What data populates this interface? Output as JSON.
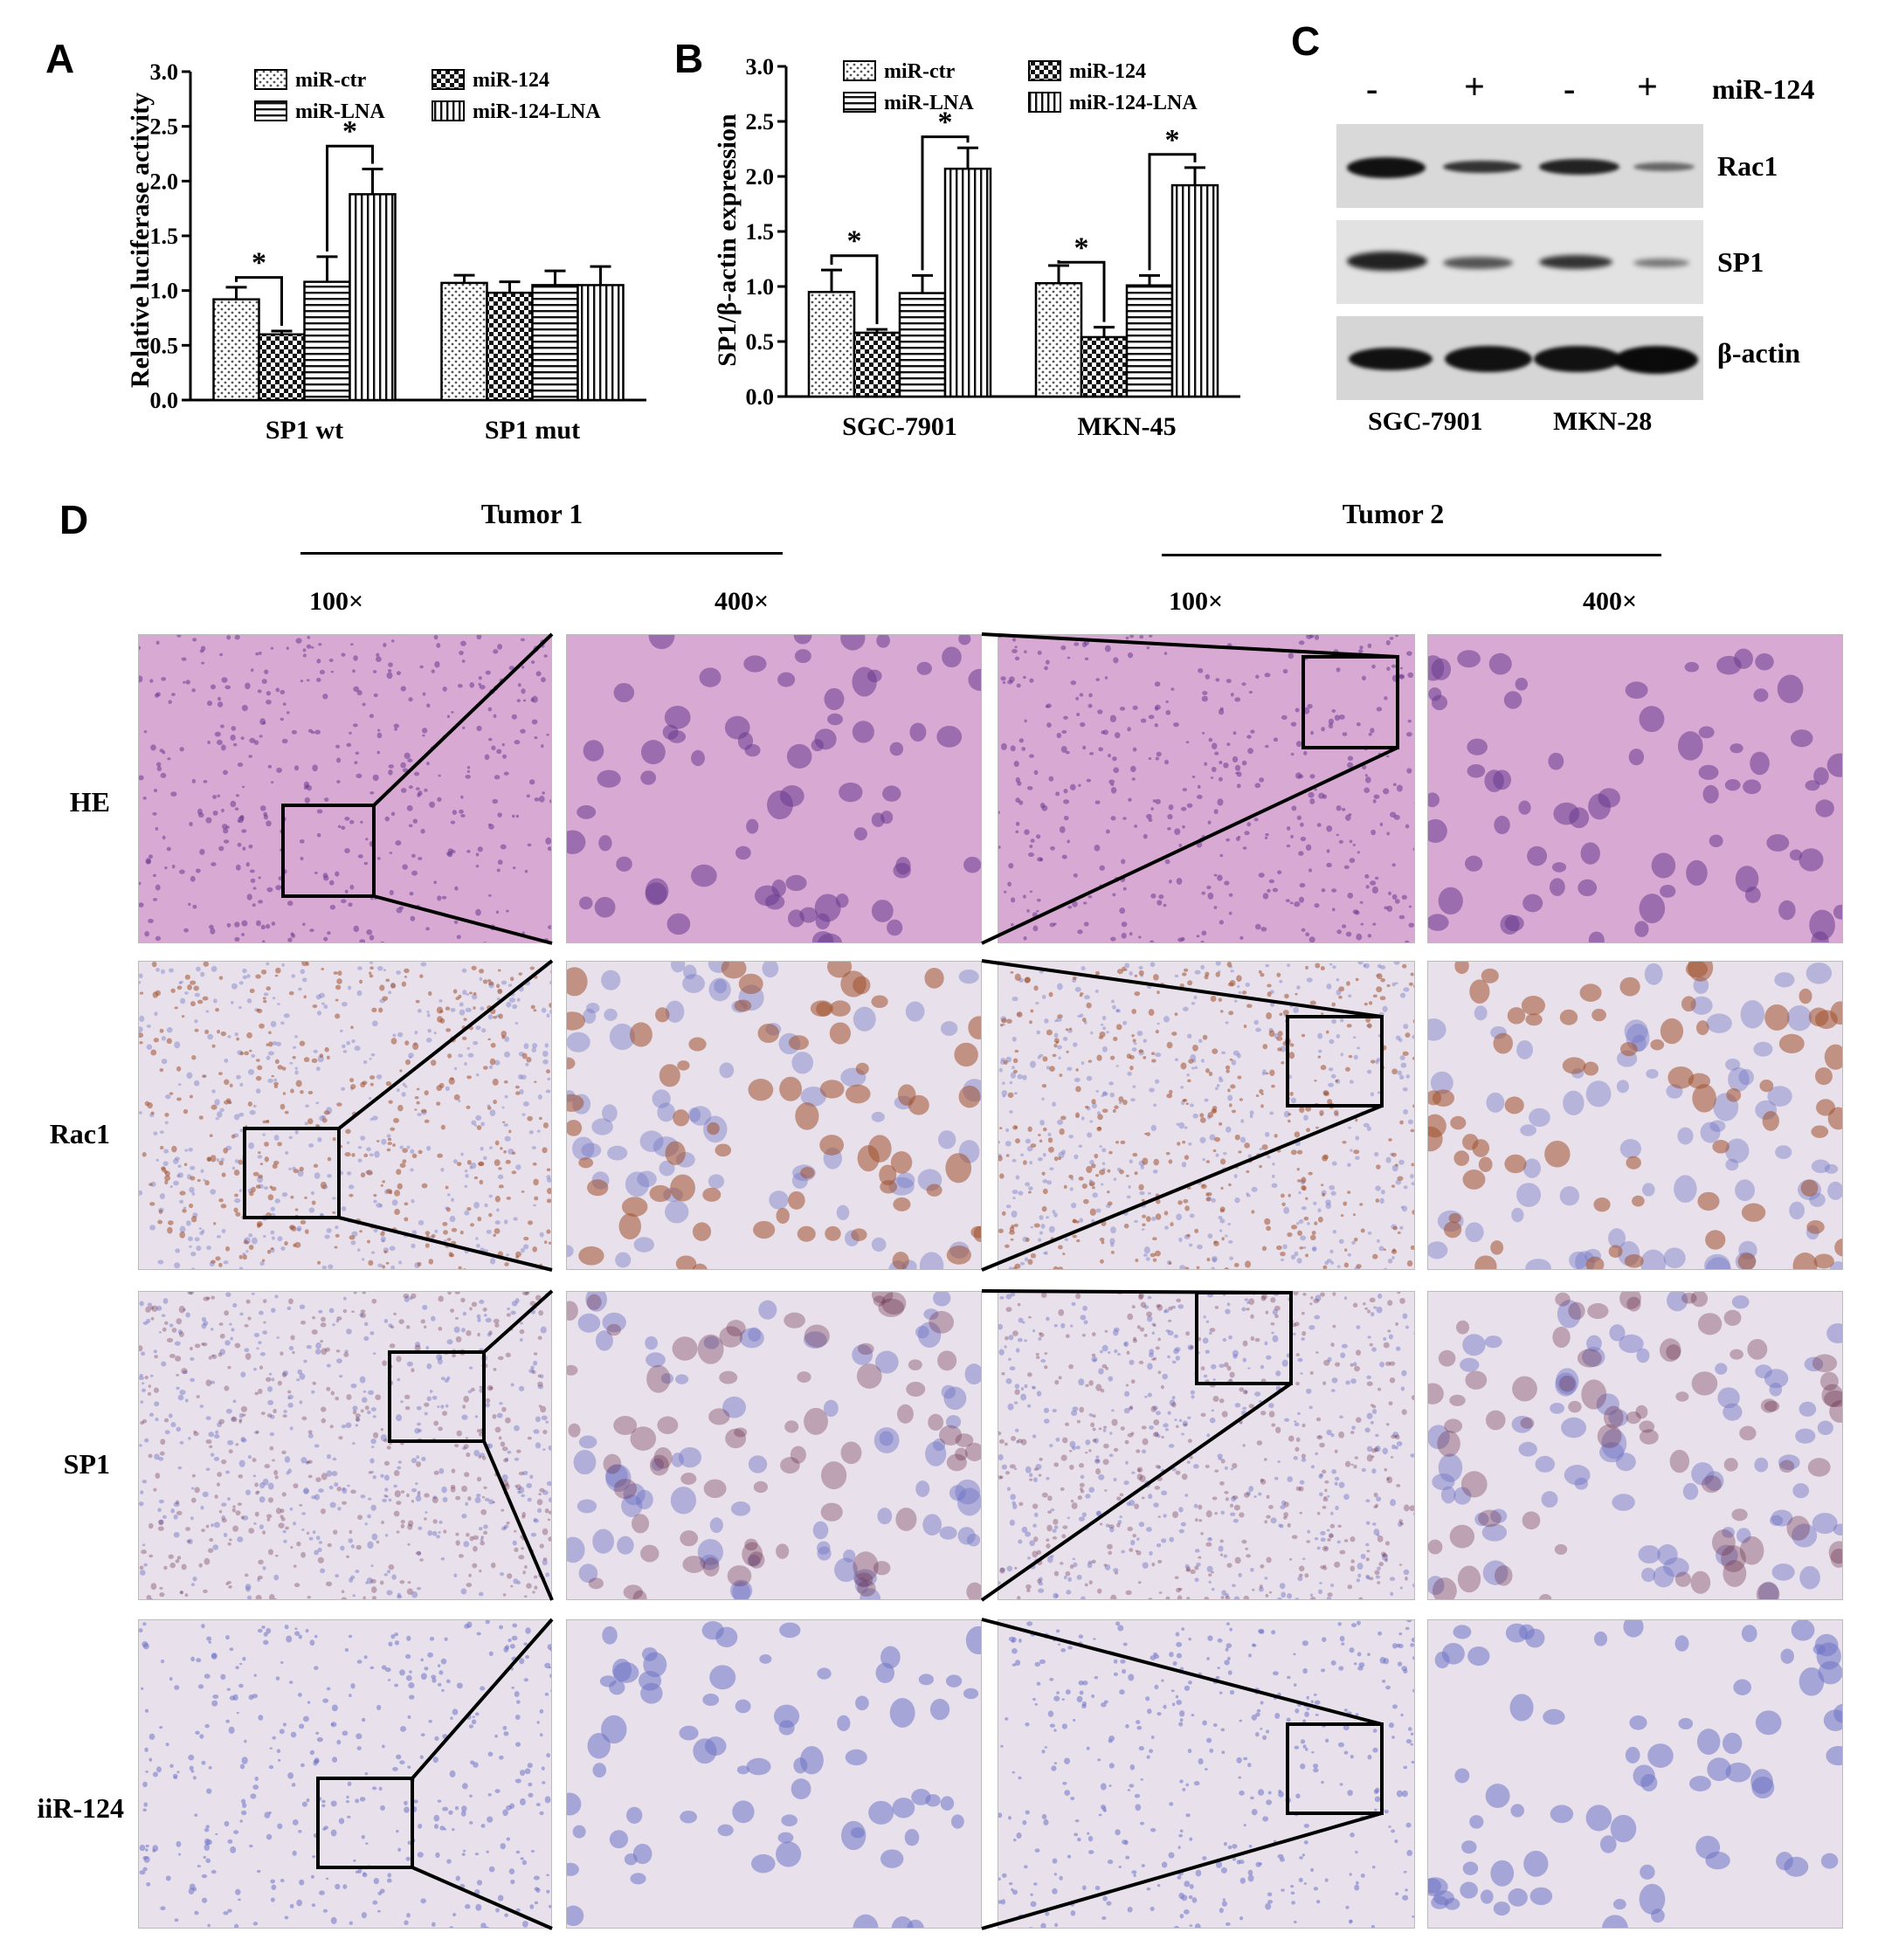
{
  "panel_letters": {
    "a": "A",
    "b": "B",
    "c": "C",
    "d": "D"
  },
  "significance_marker": "*",
  "chart_data": [
    {
      "panel": "A",
      "type": "bar",
      "categories": [
        "SP1 wt",
        "SP1 mut"
      ],
      "ylabel": "Relative luciferase activity",
      "ylim": [
        0,
        3.0
      ],
      "yticks": [
        "0.0",
        "0.5",
        "1.0",
        "1.5",
        "2.0",
        "2.5",
        "3.0"
      ],
      "legend_position": "top",
      "series": [
        {
          "name": "miR-ctr",
          "values": [
            0.92,
            1.07
          ],
          "errors": [
            0.11,
            0.07
          ]
        },
        {
          "name": "miR-124",
          "values": [
            0.6,
            0.98
          ],
          "errors": [
            0.03,
            0.1
          ]
        },
        {
          "name": "miR-LNA",
          "values": [
            1.08,
            1.05
          ],
          "errors": [
            0.23,
            0.13
          ]
        },
        {
          "name": "miR-124-LNA",
          "values": [
            1.88,
            1.05
          ],
          "errors": [
            0.23,
            0.17
          ]
        }
      ],
      "annotations": [
        {
          "text": "*",
          "between": [
            "miR-ctr",
            "miR-124"
          ],
          "category": "SP1 wt"
        },
        {
          "text": "*",
          "between": [
            "miR-LNA",
            "miR-124-LNA"
          ],
          "category": "SP1 wt"
        }
      ]
    },
    {
      "panel": "B",
      "type": "bar",
      "categories": [
        "SGC-7901",
        "MKN-45"
      ],
      "ylabel": "SP1/β-actin expression",
      "ylim": [
        0,
        3.0
      ],
      "yticks": [
        "0.0",
        "0.5",
        "1.0",
        "1.5",
        "2.0",
        "2.5",
        "3.0"
      ],
      "legend_position": "top",
      "series": [
        {
          "name": "miR-ctr",
          "values": [
            0.95,
            1.03
          ],
          "errors": [
            0.2,
            0.16
          ]
        },
        {
          "name": "miR-124",
          "values": [
            0.58,
            0.54
          ],
          "errors": [
            0.03,
            0.09
          ]
        },
        {
          "name": "miR-LNA",
          "values": [
            0.94,
            1.01
          ],
          "errors": [
            0.16,
            0.09
          ]
        },
        {
          "name": "miR-124-LNA",
          "values": [
            2.07,
            1.92
          ],
          "errors": [
            0.19,
            0.16
          ]
        }
      ],
      "annotations": [
        {
          "text": "*",
          "between": [
            "miR-ctr",
            "miR-124"
          ],
          "category": "SGC-7901"
        },
        {
          "text": "*",
          "between": [
            "miR-LNA",
            "miR-124-LNA"
          ],
          "category": "SGC-7901"
        },
        {
          "text": "*",
          "between": [
            "miR-ctr",
            "miR-124"
          ],
          "category": "MKN-45"
        },
        {
          "text": "*",
          "between": [
            "miR-LNA",
            "miR-124-LNA"
          ],
          "category": "MKN-45"
        }
      ]
    }
  ],
  "western_blot": {
    "treatment_label": "miR-124",
    "lane_signs": [
      "-",
      "+",
      "-",
      "+"
    ],
    "bands": [
      "Rac1",
      "SP1",
      "β-actin"
    ],
    "cell_lines": [
      "SGC-7901",
      "MKN-28"
    ]
  },
  "histology": {
    "tumors": [
      "Tumor 1",
      "Tumor 2"
    ],
    "magnifications": [
      "100×",
      "400×"
    ],
    "rows": [
      {
        "label": "HE",
        "stain": "he"
      },
      {
        "label": "Rac1",
        "stain": "rac1"
      },
      {
        "label": "SP1",
        "stain": "sp1"
      },
      {
        "label": "iiR-124",
        "stain": "mir"
      }
    ],
    "colors": {
      "he_background": "#d8a9d3",
      "he_nuclei": "#6a3d8f",
      "ihc_background": "#e8e0ea",
      "hematoxylin_nuclei": "#6f74c6",
      "dab_positive": "#a0522d",
      "sp1_positive": "#6b2d4a"
    }
  }
}
